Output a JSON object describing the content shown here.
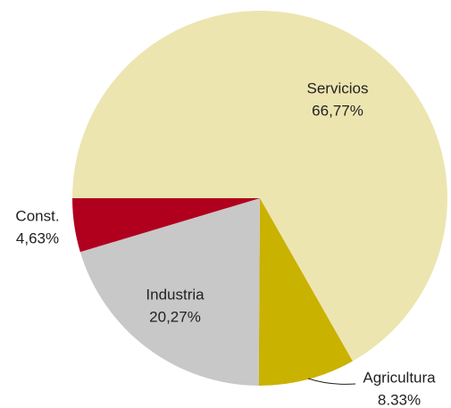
{
  "chart_data": {
    "type": "pie",
    "categories": [
      "Servicios",
      "Agricultura",
      "Industria",
      "Const."
    ],
    "values": [
      66.77,
      8.33,
      20.27,
      4.63
    ],
    "value_labels": [
      "66,77%",
      "8.33%",
      "20,27%",
      "4,63%"
    ],
    "colors": [
      "#ede5b0",
      "#c9b200",
      "#c8c8c8",
      "#b0001e"
    ]
  }
}
